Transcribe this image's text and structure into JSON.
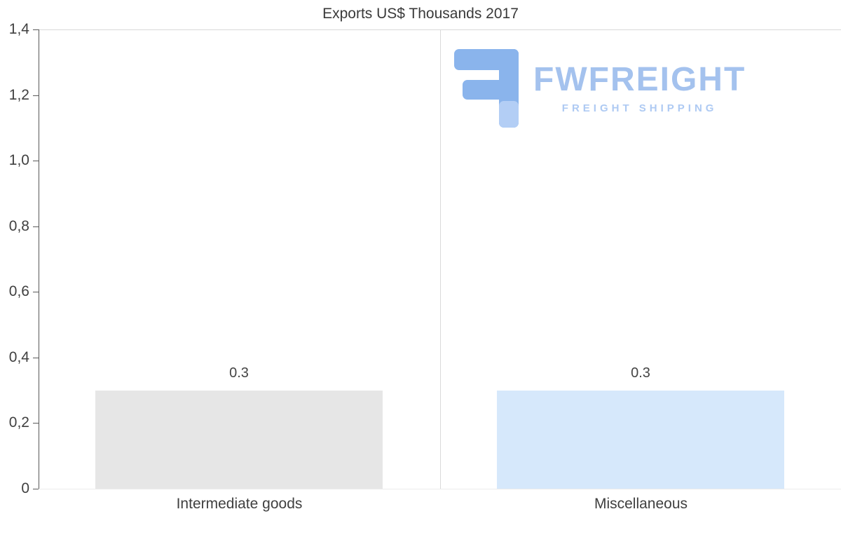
{
  "title": "Exports US$ Thousands 2017",
  "chart_data": {
    "type": "bar",
    "title": "Exports US$ Thousands 2017",
    "categories": [
      "Intermediate goods",
      "Miscellaneous"
    ],
    "values": [
      0.3,
      0.3
    ],
    "value_labels": [
      "0.3",
      "0.3"
    ],
    "bar_colors": [
      "#e6e6e6",
      "#d6e8fb"
    ],
    "xlabel": "",
    "ylabel": "",
    "ylim": [
      0,
      1.4
    ],
    "yticks": [
      0,
      0.2,
      0.4,
      0.6,
      0.8,
      1.0,
      1.2,
      1.4
    ],
    "ytick_labels": [
      "0",
      "0,2",
      "0,4",
      "0,6",
      "0,8",
      "1,0",
      "1,2",
      "1,4"
    ],
    "grid": "category-separator-vertical",
    "legend": "none"
  },
  "watermark": {
    "name": "FWFREIGHT",
    "tagline": "FREIGHT SHIPPING",
    "icon": "fwfreight-logo-icon",
    "color_primary": "#8ab4ec",
    "color_light": "#b3cef5"
  },
  "colors": {
    "background": "#ffffff",
    "axis": "#595959",
    "gridline": "#d9d9d9",
    "text": "#404040"
  }
}
